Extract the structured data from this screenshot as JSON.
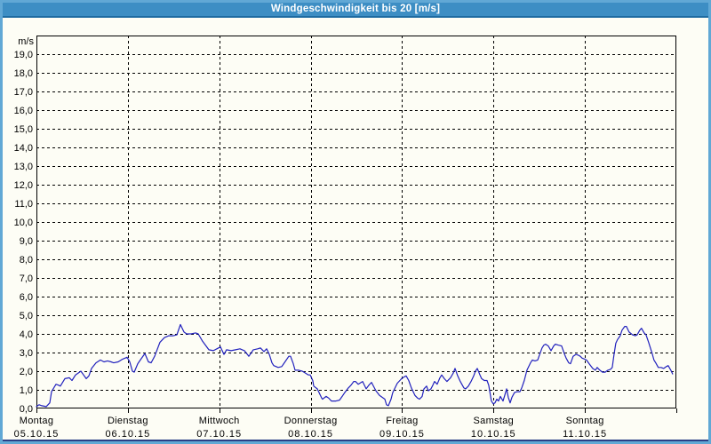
{
  "window": {
    "title": "Windgeschwindigkeit bis 20 [m/s]"
  },
  "colors": {
    "title_bar_bg": "#3d8ec4",
    "title_bar_edge": "#1e6ba1",
    "title_text": "#ffffff",
    "window_border": "#61a8d5",
    "bottom_edge_line": "#2b3f86",
    "background": "#fdfdf5",
    "grid": "#000000",
    "frame": "#000000",
    "line": "#2121bd"
  },
  "chart_data": {
    "type": "line",
    "title": "Windgeschwindigkeit bis 20 [m/s]",
    "unit_label": "m/s",
    "ylabel": "m/s",
    "xlabel": "",
    "ylim": [
      0,
      20
    ],
    "y_tick_step": 1,
    "y_tick_labels": [
      "0,0",
      "1,0",
      "2,0",
      "3,0",
      "4,0",
      "5,0",
      "6,0",
      "7,0",
      "8,0",
      "9,0",
      "10,0",
      "11,0",
      "12,0",
      "13,0",
      "14,0",
      "15,0",
      "16,0",
      "17,0",
      "18,0",
      "19,0"
    ],
    "x_range_days": 7,
    "grid": "dashed",
    "legend": "none",
    "x_ticks": [
      {
        "day": "Montag",
        "date": "05.10.15"
      },
      {
        "day": "Dienstag",
        "date": "06.10.15"
      },
      {
        "day": "Mittwoch",
        "date": "07.10.15"
      },
      {
        "day": "Donnerstag",
        "date": "08.10.15"
      },
      {
        "day": "Freitag",
        "date": "09.10.15"
      },
      {
        "day": "Samstag",
        "date": "10.10.15"
      },
      {
        "day": "Sonntag",
        "date": "11.10.15"
      }
    ],
    "series": [
      {
        "name": "Windgeschwindigkeit",
        "unit": "m/s",
        "x_unit": "days_since_2015-10-05",
        "points": [
          [
            0.0,
            0.1
          ],
          [
            0.029,
            0.2
          ],
          [
            0.058,
            0.15
          ],
          [
            0.107,
            0.1
          ],
          [
            0.146,
            0.3
          ],
          [
            0.165,
            0.9
          ],
          [
            0.214,
            1.3
          ],
          [
            0.243,
            1.25
          ],
          [
            0.262,
            1.2
          ],
          [
            0.311,
            1.6
          ],
          [
            0.36,
            1.65
          ],
          [
            0.389,
            1.5
          ],
          [
            0.428,
            1.8
          ],
          [
            0.457,
            1.9
          ],
          [
            0.486,
            2.0
          ],
          [
            0.515,
            1.8
          ],
          [
            0.544,
            1.6
          ],
          [
            0.574,
            1.75
          ],
          [
            0.603,
            2.15
          ],
          [
            0.651,
            2.45
          ],
          [
            0.7,
            2.6
          ],
          [
            0.739,
            2.5
          ],
          [
            0.778,
            2.55
          ],
          [
            0.817,
            2.5
          ],
          [
            0.846,
            2.45
          ],
          [
            0.894,
            2.5
          ],
          [
            0.943,
            2.65
          ],
          [
            0.992,
            2.75
          ],
          [
            1.021,
            2.5
          ],
          [
            1.05,
            2.0
          ],
          [
            1.069,
            1.95
          ],
          [
            1.108,
            2.4
          ],
          [
            1.137,
            2.6
          ],
          [
            1.186,
            2.95
          ],
          [
            1.225,
            2.5
          ],
          [
            1.254,
            2.45
          ],
          [
            1.293,
            2.8
          ],
          [
            1.351,
            3.55
          ],
          [
            1.4,
            3.8
          ],
          [
            1.449,
            3.9
          ],
          [
            1.497,
            3.9
          ],
          [
            1.536,
            3.95
          ],
          [
            1.575,
            4.5
          ],
          [
            1.614,
            4.1
          ],
          [
            1.643,
            4.0
          ],
          [
            1.692,
            4.0
          ],
          [
            1.74,
            4.05
          ],
          [
            1.769,
            4.0
          ],
          [
            1.818,
            3.6
          ],
          [
            1.886,
            3.15
          ],
          [
            1.935,
            3.1
          ],
          [
            1.974,
            3.2
          ],
          [
            2.013,
            3.3
          ],
          [
            2.051,
            2.9
          ],
          [
            2.08,
            3.15
          ],
          [
            2.129,
            3.1
          ],
          [
            2.178,
            3.15
          ],
          [
            2.226,
            3.2
          ],
          [
            2.275,
            3.1
          ],
          [
            2.324,
            2.8
          ],
          [
            2.372,
            3.15
          ],
          [
            2.421,
            3.2
          ],
          [
            2.45,
            3.25
          ],
          [
            2.489,
            3.05
          ],
          [
            2.518,
            3.2
          ],
          [
            2.547,
            2.9
          ],
          [
            2.576,
            2.45
          ],
          [
            2.596,
            2.3
          ],
          [
            2.644,
            2.2
          ],
          [
            2.683,
            2.25
          ],
          [
            2.712,
            2.45
          ],
          [
            2.761,
            2.8
          ],
          [
            2.78,
            2.8
          ],
          [
            2.81,
            2.4
          ],
          [
            2.829,
            2.05
          ],
          [
            2.868,
            2.05
          ],
          [
            2.907,
            2.0
          ],
          [
            2.926,
            1.95
          ],
          [
            2.975,
            1.8
          ],
          [
            2.994,
            1.8
          ],
          [
            3.023,
            1.5
          ],
          [
            3.033,
            1.2
          ],
          [
            3.072,
            1.05
          ],
          [
            3.121,
            0.55
          ],
          [
            3.13,
            0.5
          ],
          [
            3.169,
            0.65
          ],
          [
            3.198,
            0.55
          ],
          [
            3.227,
            0.4
          ],
          [
            3.276,
            0.4
          ],
          [
            3.315,
            0.45
          ],
          [
            3.344,
            0.65
          ],
          [
            3.373,
            0.85
          ],
          [
            3.412,
            1.1
          ],
          [
            3.441,
            1.25
          ],
          [
            3.471,
            1.45
          ],
          [
            3.49,
            1.45
          ],
          [
            3.519,
            1.3
          ],
          [
            3.568,
            1.45
          ],
          [
            3.607,
            1.05
          ],
          [
            3.636,
            1.25
          ],
          [
            3.665,
            1.4
          ],
          [
            3.714,
            0.95
          ],
          [
            3.753,
            0.7
          ],
          [
            3.782,
            0.6
          ],
          [
            3.811,
            0.5
          ],
          [
            3.83,
            0.2
          ],
          [
            3.85,
            0.15
          ],
          [
            3.879,
            0.5
          ],
          [
            3.898,
            0.85
          ],
          [
            3.947,
            1.35
          ],
          [
            3.995,
            1.6
          ],
          [
            4.025,
            1.7
          ],
          [
            4.044,
            1.75
          ],
          [
            4.073,
            1.5
          ],
          [
            4.102,
            1.1
          ],
          [
            4.141,
            0.7
          ],
          [
            4.171,
            0.55
          ],
          [
            4.19,
            0.5
          ],
          [
            4.219,
            0.65
          ],
          [
            4.239,
            1.05
          ],
          [
            4.268,
            1.2
          ],
          [
            4.287,
            0.95
          ],
          [
            4.316,
            1.05
          ],
          [
            4.336,
            1.25
          ],
          [
            4.355,
            1.45
          ],
          [
            4.384,
            1.3
          ],
          [
            4.414,
            1.65
          ],
          [
            4.433,
            1.8
          ],
          [
            4.462,
            1.6
          ],
          [
            4.491,
            1.45
          ],
          [
            4.53,
            1.65
          ],
          [
            4.56,
            1.9
          ],
          [
            4.579,
            2.15
          ],
          [
            4.608,
            1.75
          ],
          [
            4.637,
            1.45
          ],
          [
            4.676,
            1.1
          ],
          [
            4.695,
            1.05
          ],
          [
            4.725,
            1.2
          ],
          [
            4.754,
            1.45
          ],
          [
            4.783,
            1.75
          ],
          [
            4.802,
            2.0
          ],
          [
            4.822,
            2.15
          ],
          [
            4.851,
            1.8
          ],
          [
            4.87,
            1.6
          ],
          [
            4.899,
            1.5
          ],
          [
            4.929,
            1.5
          ],
          [
            4.948,
            1.25
          ],
          [
            4.977,
            0.4
          ],
          [
            4.997,
            0.25
          ],
          [
            5.016,
            0.3
          ],
          [
            5.036,
            0.5
          ],
          [
            5.055,
            0.4
          ],
          [
            5.075,
            0.65
          ],
          [
            5.104,
            0.4
          ],
          [
            5.123,
            0.7
          ],
          [
            5.143,
            1.05
          ],
          [
            5.162,
            0.6
          ],
          [
            5.182,
            0.3
          ],
          [
            5.201,
            0.6
          ],
          [
            5.23,
            0.85
          ],
          [
            5.259,
            0.9
          ],
          [
            5.289,
            0.9
          ],
          [
            5.308,
            1.1
          ],
          [
            5.337,
            1.5
          ],
          [
            5.366,
            2.05
          ],
          [
            5.405,
            2.45
          ],
          [
            5.425,
            2.6
          ],
          [
            5.454,
            2.55
          ],
          [
            5.483,
            2.6
          ],
          [
            5.502,
            2.85
          ],
          [
            5.531,
            3.25
          ],
          [
            5.551,
            3.4
          ],
          [
            5.57,
            3.45
          ],
          [
            5.599,
            3.35
          ],
          [
            5.629,
            3.1
          ],
          [
            5.658,
            3.35
          ],
          [
            5.677,
            3.45
          ],
          [
            5.706,
            3.4
          ],
          [
            5.745,
            3.35
          ],
          [
            5.774,
            2.95
          ],
          [
            5.794,
            2.7
          ],
          [
            5.823,
            2.45
          ],
          [
            5.842,
            2.4
          ],
          [
            5.871,
            2.8
          ],
          [
            5.901,
            2.9
          ],
          [
            5.93,
            2.85
          ],
          [
            5.949,
            2.8
          ],
          [
            5.969,
            2.7
          ],
          [
            5.998,
            2.65
          ],
          [
            6.017,
            2.6
          ],
          [
            6.046,
            2.4
          ],
          [
            6.085,
            2.15
          ],
          [
            6.114,
            2.05
          ],
          [
            6.134,
            2.2
          ],
          [
            6.163,
            2.05
          ],
          [
            6.192,
            1.95
          ],
          [
            6.221,
            1.95
          ],
          [
            6.25,
            2.05
          ],
          [
            6.28,
            2.1
          ],
          [
            6.299,
            2.2
          ],
          [
            6.318,
            2.9
          ],
          [
            6.338,
            3.5
          ],
          [
            6.357,
            3.7
          ],
          [
            6.386,
            3.9
          ],
          [
            6.406,
            4.2
          ],
          [
            6.435,
            4.4
          ],
          [
            6.454,
            4.4
          ],
          [
            6.483,
            4.1
          ],
          [
            6.522,
            3.95
          ],
          [
            6.551,
            3.9
          ],
          [
            6.571,
            3.95
          ],
          [
            6.6,
            4.2
          ],
          [
            6.619,
            4.3
          ],
          [
            6.648,
            4.05
          ],
          [
            6.668,
            3.95
          ],
          [
            6.697,
            3.55
          ],
          [
            6.716,
            3.25
          ],
          [
            6.736,
            2.95
          ],
          [
            6.755,
            2.6
          ],
          [
            6.774,
            2.45
          ],
          [
            6.803,
            2.2
          ],
          [
            6.833,
            2.2
          ],
          [
            6.862,
            2.15
          ],
          [
            6.891,
            2.25
          ],
          [
            6.911,
            2.3
          ],
          [
            6.94,
            2.05
          ],
          [
            6.959,
            1.85
          ]
        ]
      }
    ]
  }
}
